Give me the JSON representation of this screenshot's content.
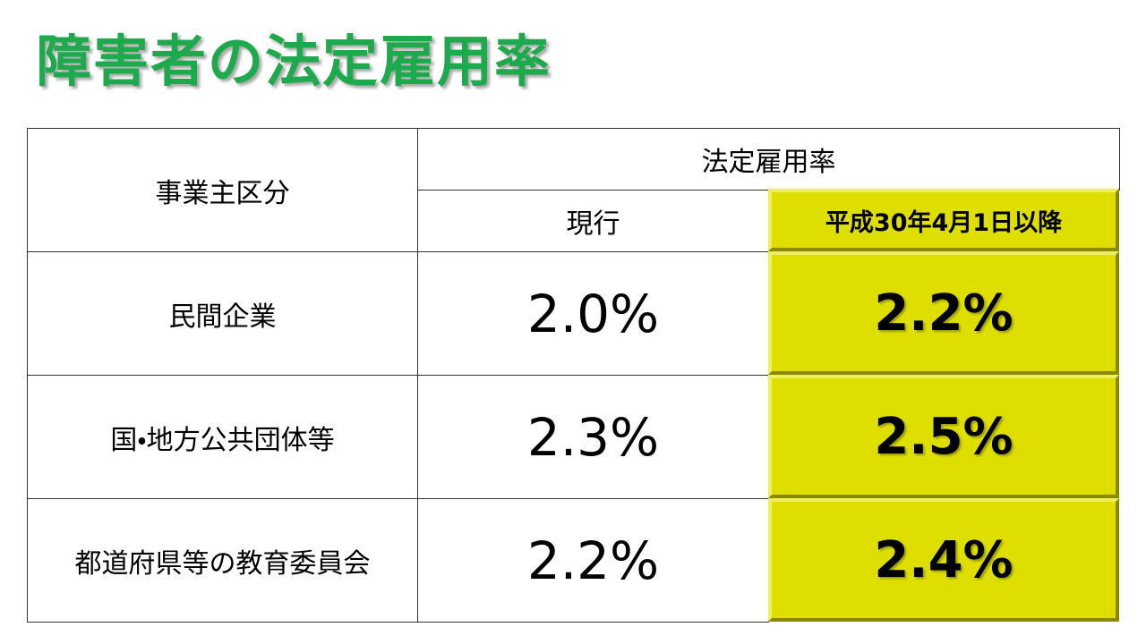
{
  "header": {
    "title": "障害者の法定雇用率"
  },
  "table": {
    "header": {
      "category": "事業主区分",
      "group": "法定雇用率",
      "current": "現行",
      "new": "平成30年4月1日以降"
    },
    "rows": [
      [
        "民間企業",
        "2.0%",
        "2.2%"
      ],
      [
        "国・地方公共団体等",
        "2.3%",
        "2.5%"
      ],
      [
        "都道府県等の教育委員会",
        "2.2%",
        "2.4%"
      ]
    ]
  }
}
